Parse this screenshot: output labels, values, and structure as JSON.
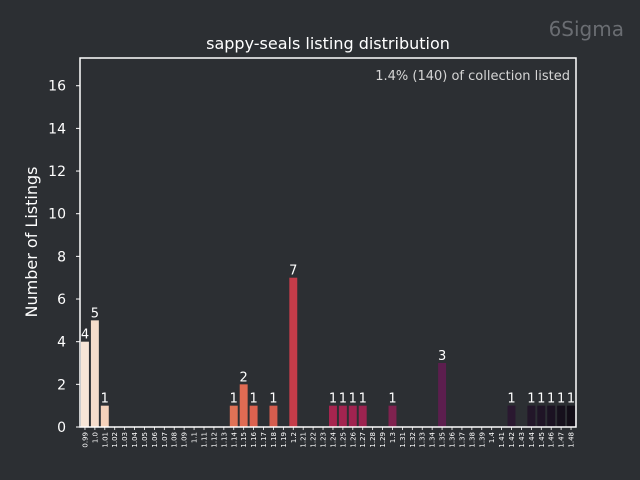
{
  "chart_data": {
    "type": "bar",
    "title": "sappy-seals listing distribution",
    "watermark": "6Sigma",
    "annotation": "1.4% (140) of collection listed",
    "xlabel": "",
    "ylabel": "Number of Listings",
    "ylim": [
      0,
      17.3
    ],
    "yticks": [
      0,
      2,
      4,
      6,
      8,
      10,
      12,
      14,
      16
    ],
    "categories": [
      "0.99",
      "1.0",
      "1.01",
      "1.02",
      "1.03",
      "1.04",
      "1.05",
      "1.06",
      "1.07",
      "1.08",
      "1.09",
      "1.1",
      "1.11",
      "1.12",
      "1.13",
      "1.14",
      "1.15",
      "1.16",
      "1.17",
      "1.18",
      "1.19",
      "1.2",
      "1.21",
      "1.22",
      "1.23",
      "1.24",
      "1.25",
      "1.26",
      "1.27",
      "1.28",
      "1.29",
      "1.3",
      "1.31",
      "1.32",
      "1.33",
      "1.34",
      "1.35",
      "1.36",
      "1.37",
      "1.38",
      "1.39",
      "1.4",
      "1.41",
      "1.42",
      "1.43",
      "1.44",
      "1.45",
      "1.46",
      "1.47",
      "1.48"
    ],
    "values": [
      4,
      5,
      1,
      0,
      0,
      0,
      0,
      0,
      0,
      0,
      0,
      0,
      0,
      0,
      0,
      1,
      2,
      1,
      0,
      1,
      0,
      7,
      0,
      0,
      0,
      1,
      1,
      1,
      1,
      0,
      0,
      1,
      0,
      0,
      0,
      0,
      3,
      0,
      0,
      0,
      0,
      0,
      0,
      1,
      0,
      1,
      1,
      1,
      1,
      1
    ],
    "colors": [
      "#f7e6d8",
      "#f5dccb",
      "#f4d1ba",
      "#f3c7ac",
      "#f2bc9e",
      "#f1b190",
      "#f0a583",
      "#ee9a75",
      "#ec8f69",
      "#ea835d",
      "#e87853",
      "#e46c4c",
      "#df6046",
      "#db5543",
      "#d54c45",
      "#e07256",
      "#e06b53",
      "#dc624f",
      "#d85a4b",
      "#d55d4e",
      "#cd4b4b",
      "#c43c49",
      "#bb334a",
      "#b22d4c",
      "#a9294e",
      "#a6254f",
      "#a32450",
      "#a02350",
      "#9c2350",
      "#942150",
      "#8c1f50",
      "#7f224f",
      "#77214d",
      "#6f204b",
      "#671f49",
      "#5f1e46",
      "#5c1e4e",
      "#531d45",
      "#4b1b40",
      "#43193b",
      "#3b1736",
      "#341631",
      "#2e142c",
      "#2a1830",
      "#241429",
      "#221629",
      "#1f1426",
      "#1b1222",
      "#16101c",
      "#120d17"
    ]
  }
}
